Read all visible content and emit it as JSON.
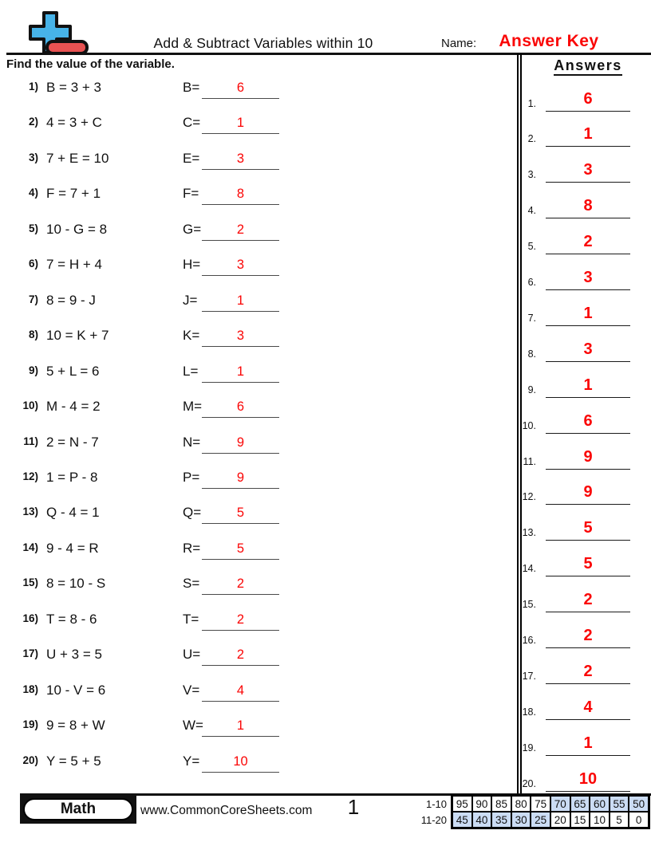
{
  "colors": {
    "answer_red": "#fa0505",
    "score_highlight_blue": "#cbdcf4",
    "logo_blue": "#47b3e8",
    "logo_red": "#e85252"
  },
  "header": {
    "title": "Add & Subtract Variables within 10",
    "name_label": "Name:",
    "name_value": "Answer Key",
    "instruction": "Find the value of the variable."
  },
  "problems": [
    {
      "num": "1)",
      "equation": "B = 3 + 3",
      "var_label": "B=",
      "answer": "6"
    },
    {
      "num": "2)",
      "equation": "4 = 3 + C",
      "var_label": "C=",
      "answer": "1"
    },
    {
      "num": "3)",
      "equation": "7 + E = 10",
      "var_label": "E=",
      "answer": "3"
    },
    {
      "num": "4)",
      "equation": "F = 7 + 1",
      "var_label": "F=",
      "answer": "8"
    },
    {
      "num": "5)",
      "equation": "10 - G = 8",
      "var_label": "G=",
      "answer": "2"
    },
    {
      "num": "6)",
      "equation": "7 = H + 4",
      "var_label": "H=",
      "answer": "3"
    },
    {
      "num": "7)",
      "equation": "8 = 9 - J",
      "var_label": "J=",
      "answer": "1"
    },
    {
      "num": "8)",
      "equation": "10 = K + 7",
      "var_label": "K=",
      "answer": "3"
    },
    {
      "num": "9)",
      "equation": "5 + L = 6",
      "var_label": "L=",
      "answer": "1"
    },
    {
      "num": "10)",
      "equation": "M - 4 = 2",
      "var_label": "M=",
      "answer": "6"
    },
    {
      "num": "11)",
      "equation": "2 = N - 7",
      "var_label": "N=",
      "answer": "9"
    },
    {
      "num": "12)",
      "equation": "1 = P - 8",
      "var_label": "P=",
      "answer": "9"
    },
    {
      "num": "13)",
      "equation": "Q - 4 = 1",
      "var_label": "Q=",
      "answer": "5"
    },
    {
      "num": "14)",
      "equation": "9 - 4 = R",
      "var_label": "R=",
      "answer": "5"
    },
    {
      "num": "15)",
      "equation": "8 = 10 - S",
      "var_label": "S=",
      "answer": "2"
    },
    {
      "num": "16)",
      "equation": "T = 8 - 6",
      "var_label": "T=",
      "answer": "2"
    },
    {
      "num": "17)",
      "equation": "U + 3 = 5",
      "var_label": "U=",
      "answer": "2"
    },
    {
      "num": "18)",
      "equation": "10 - V = 6",
      "var_label": "V=",
      "answer": "4"
    },
    {
      "num": "19)",
      "equation": "9 = 8 + W",
      "var_label": "W=",
      "answer": "1"
    },
    {
      "num": "20)",
      "equation": "Y = 5 + 5",
      "var_label": "Y=",
      "answer": "10"
    }
  ],
  "answers_panel": {
    "title": "Answers",
    "items": [
      {
        "num": "1.",
        "value": "6"
      },
      {
        "num": "2.",
        "value": "1"
      },
      {
        "num": "3.",
        "value": "3"
      },
      {
        "num": "4.",
        "value": "8"
      },
      {
        "num": "5.",
        "value": "2"
      },
      {
        "num": "6.",
        "value": "3"
      },
      {
        "num": "7.",
        "value": "1"
      },
      {
        "num": "8.",
        "value": "3"
      },
      {
        "num": "9.",
        "value": "1"
      },
      {
        "num": "10.",
        "value": "6"
      },
      {
        "num": "11.",
        "value": "9"
      },
      {
        "num": "12.",
        "value": "9"
      },
      {
        "num": "13.",
        "value": "5"
      },
      {
        "num": "14.",
        "value": "5"
      },
      {
        "num": "15.",
        "value": "2"
      },
      {
        "num": "16.",
        "value": "2"
      },
      {
        "num": "17.",
        "value": "2"
      },
      {
        "num": "18.",
        "value": "4"
      },
      {
        "num": "19.",
        "value": "1"
      },
      {
        "num": "20.",
        "value": "10"
      }
    ]
  },
  "footer": {
    "subject_badge": "Math",
    "website": "www.CommonCoreSheets.com",
    "page_number": "1",
    "score_table": {
      "rows": [
        {
          "label": "1-10",
          "values": [
            "95",
            "90",
            "85",
            "80",
            "75",
            "70",
            "65",
            "60",
            "55",
            "50"
          ],
          "highlight": [
            false,
            false,
            false,
            false,
            false,
            true,
            true,
            true,
            true,
            true
          ]
        },
        {
          "label": "11-20",
          "values": [
            "45",
            "40",
            "35",
            "30",
            "25",
            "20",
            "15",
            "10",
            "5",
            "0"
          ],
          "highlight": [
            true,
            true,
            true,
            true,
            true,
            false,
            false,
            false,
            false,
            false
          ]
        }
      ]
    }
  }
}
